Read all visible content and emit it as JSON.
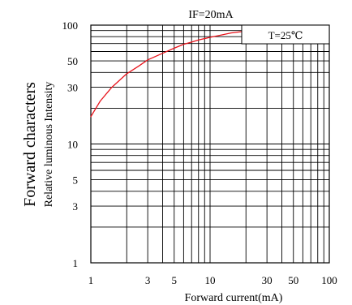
{
  "chart_data": {
    "type": "line",
    "title": "IF=20mA",
    "annotation": "T=25℃",
    "xlabel": "Forward current(mA)",
    "ylabel_main": "Forward characters",
    "ylabel_sub": "Relative luminous Intensity",
    "x_scale": "log",
    "y_scale": "log",
    "xlim": [
      1,
      100
    ],
    "ylim": [
      1,
      100
    ],
    "grid": true,
    "x_ticks": [
      {
        "value": 1,
        "label": "1"
      },
      {
        "value": 3,
        "label": "3"
      },
      {
        "value": 5,
        "label": "5"
      },
      {
        "value": 7,
        "label": ""
      },
      {
        "value": 10,
        "label": "10"
      },
      {
        "value": 30,
        "label": "30"
      },
      {
        "value": 50,
        "label": "50"
      },
      {
        "value": 70,
        "label": ""
      },
      {
        "value": 100,
        "label": "100"
      }
    ],
    "y_ticks": [
      {
        "value": 1,
        "label": "1"
      },
      {
        "value": 3,
        "label": "3"
      },
      {
        "value": 5,
        "label": "5"
      },
      {
        "value": 10,
        "label": "10"
      },
      {
        "value": 30,
        "label": "30"
      },
      {
        "value": 50,
        "label": "50"
      },
      {
        "value": 100,
        "label": "100"
      }
    ],
    "series": [
      {
        "color": "#e8141c",
        "x": [
          1,
          1.2,
          1.5,
          2,
          2.5,
          3,
          4,
          5,
          6,
          7,
          8,
          10,
          12,
          15,
          20
        ],
        "y": [
          17,
          23,
          30,
          39,
          45,
          51,
          58,
          64,
          69,
          72,
          75,
          79,
          82,
          86,
          89
        ]
      }
    ]
  }
}
